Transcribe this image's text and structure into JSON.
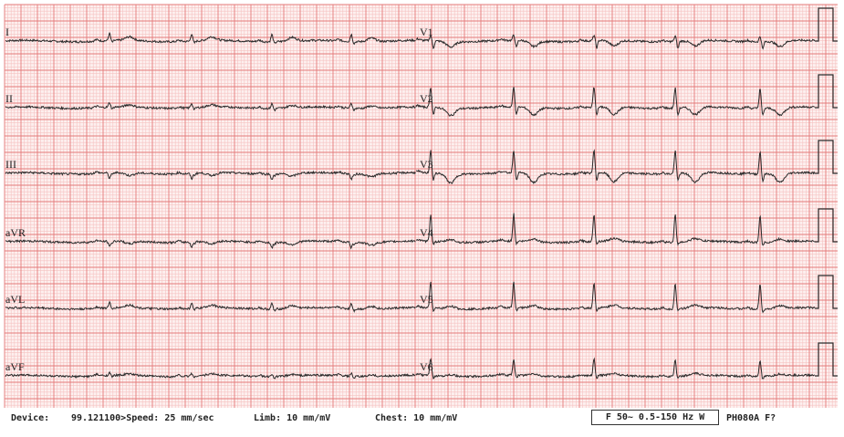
{
  "colors": {
    "grid_minor": "#f6c2c2",
    "grid_major": "#e47a7a",
    "trace": "#2a2a2a",
    "paper": "#fdf0ef"
  },
  "leads_left": [
    "I",
    "II",
    "III",
    "aVR",
    "aVL",
    "aVF"
  ],
  "leads_right": [
    "V1",
    "V2",
    "V3",
    "V4",
    "V5",
    "V6"
  ],
  "footer": {
    "device": "Device:",
    "device_id": "99.121100>Speed: 25 mm/sec",
    "limb": "Limb: 10 mm/mV",
    "chest": "Chest: 10 mm/mV",
    "filter": "F 50~ 0.5-150 Hz W",
    "model": "PH080A F?"
  }
}
